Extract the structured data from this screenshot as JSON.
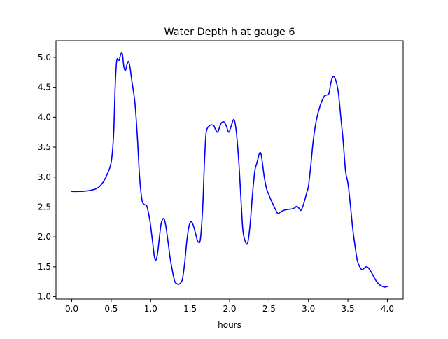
{
  "chart_data": {
    "type": "line",
    "title": "Water Depth h at gauge 6",
    "xlabel": "hours",
    "ylabel": "",
    "xlim": [
      -0.2,
      4.2
    ],
    "ylim": [
      0.96,
      5.28
    ],
    "xticks": [
      0.0,
      0.5,
      1.0,
      1.5,
      2.0,
      2.5,
      3.0,
      3.5,
      4.0
    ],
    "xtick_labels": [
      "0.0",
      "0.5",
      "1.0",
      "1.5",
      "2.0",
      "2.5",
      "3.0",
      "3.5",
      "4.0"
    ],
    "yticks": [
      1.0,
      1.5,
      2.0,
      2.5,
      3.0,
      3.5,
      4.0,
      4.5,
      5.0
    ],
    "ytick_labels": [
      "1.0",
      "1.5",
      "2.0",
      "2.5",
      "3.0",
      "3.5",
      "4.0",
      "4.5",
      "5.0"
    ],
    "grid": false,
    "line_color": "#0000ff",
    "series": [
      {
        "x": [
          0.0,
          0.1,
          0.2,
          0.3,
          0.35,
          0.4,
          0.45,
          0.5,
          0.53,
          0.55,
          0.57,
          0.6,
          0.62,
          0.64,
          0.66,
          0.68,
          0.7,
          0.72,
          0.74,
          0.76,
          0.8,
          0.83,
          0.86,
          0.89,
          0.92,
          0.95,
          0.98,
          1.0,
          1.03,
          1.05,
          1.07,
          1.09,
          1.11,
          1.13,
          1.15,
          1.17,
          1.19,
          1.21,
          1.23,
          1.25,
          1.3,
          1.33,
          1.36,
          1.4,
          1.43,
          1.46,
          1.49,
          1.52,
          1.55,
          1.58,
          1.6,
          1.63,
          1.66,
          1.68,
          1.7,
          1.72,
          1.74,
          1.76,
          1.8,
          1.82,
          1.85,
          1.88,
          1.9,
          1.93,
          1.96,
          1.99,
          2.02,
          2.05,
          2.07,
          2.09,
          2.12,
          2.15,
          2.17,
          2.2,
          2.23,
          2.26,
          2.29,
          2.32,
          2.35,
          2.38,
          2.4,
          2.42,
          2.44,
          2.47,
          2.5,
          2.53,
          2.56,
          2.6,
          2.62,
          2.65,
          2.7,
          2.75,
          2.8,
          2.83,
          2.85,
          2.88,
          2.9,
          2.92,
          2.95,
          2.98,
          3.0,
          3.03,
          3.06,
          3.1,
          3.15,
          3.2,
          3.23,
          3.26,
          3.28,
          3.3,
          3.32,
          3.35,
          3.38,
          3.41,
          3.44,
          3.47,
          3.5,
          3.53,
          3.56,
          3.59,
          3.62,
          3.65,
          3.68,
          3.7,
          3.73,
          3.76,
          3.8,
          3.83,
          3.86,
          3.9,
          3.94,
          3.97,
          4.0
        ],
        "y": [
          2.76,
          2.76,
          2.77,
          2.8,
          2.84,
          2.92,
          3.05,
          3.25,
          3.7,
          4.5,
          4.95,
          4.95,
          5.05,
          5.07,
          4.85,
          4.78,
          4.88,
          4.93,
          4.82,
          4.62,
          4.25,
          3.7,
          3.0,
          2.62,
          2.54,
          2.52,
          2.35,
          2.18,
          1.85,
          1.65,
          1.62,
          1.75,
          1.98,
          2.2,
          2.29,
          2.3,
          2.2,
          2.02,
          1.82,
          1.62,
          1.28,
          1.22,
          1.21,
          1.28,
          1.55,
          1.95,
          2.2,
          2.25,
          2.15,
          2.0,
          1.92,
          1.96,
          2.5,
          3.2,
          3.7,
          3.82,
          3.85,
          3.87,
          3.86,
          3.8,
          3.75,
          3.86,
          3.91,
          3.92,
          3.85,
          3.75,
          3.85,
          3.96,
          3.9,
          3.7,
          3.2,
          2.5,
          2.1,
          1.92,
          1.9,
          2.2,
          2.7,
          3.1,
          3.25,
          3.4,
          3.38,
          3.2,
          3.0,
          2.8,
          2.7,
          2.6,
          2.52,
          2.41,
          2.39,
          2.42,
          2.45,
          2.46,
          2.47,
          2.49,
          2.51,
          2.48,
          2.44,
          2.48,
          2.6,
          2.75,
          2.85,
          3.2,
          3.6,
          3.95,
          4.2,
          4.35,
          4.37,
          4.4,
          4.55,
          4.65,
          4.68,
          4.6,
          4.4,
          4.0,
          3.6,
          3.1,
          2.9,
          2.55,
          2.15,
          1.85,
          1.6,
          1.5,
          1.45,
          1.47,
          1.5,
          1.48,
          1.4,
          1.33,
          1.26,
          1.2,
          1.17,
          1.16,
          1.17
        ]
      }
    ]
  }
}
